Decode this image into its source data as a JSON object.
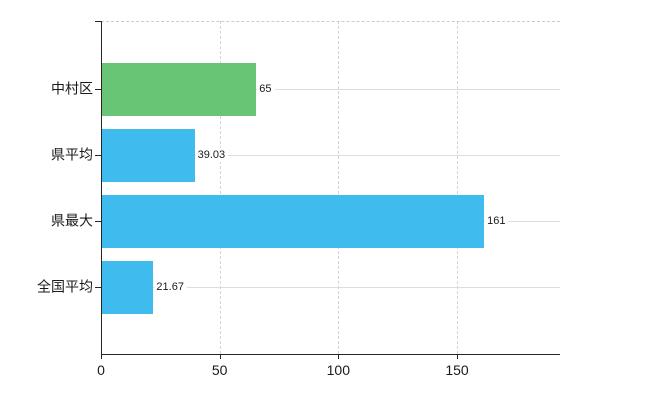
{
  "chart_data": {
    "type": "bar",
    "orientation": "horizontal",
    "title": "",
    "xlabel": "",
    "ylabel": "",
    "categories": [
      "中村区",
      "県平均",
      "県最大",
      "全国平均"
    ],
    "values": [
      65,
      39.03,
      161,
      21.67
    ],
    "value_labels": [
      "65",
      "39.03",
      "161",
      "21.67"
    ],
    "bar_colors": [
      "#68c575",
      "#3fbbee",
      "#3fbbee",
      "#3fbbee"
    ],
    "x_ticks": [
      "0",
      "50",
      "100",
      "150"
    ],
    "x_tick_values": [
      0,
      50,
      100,
      150
    ],
    "xlim": [
      0,
      193
    ],
    "grid": true,
    "legend": "none",
    "colors": {
      "bar_blue": "#3fbbee",
      "bar_green": "#68c575",
      "axis": "#262626",
      "gridline_horizontal": "#d9e0d9",
      "gridline_vertical": "#d6d2da",
      "plot_border_top": "#cccccc",
      "text": "#1a1a1a",
      "background": "#ffffff"
    }
  }
}
